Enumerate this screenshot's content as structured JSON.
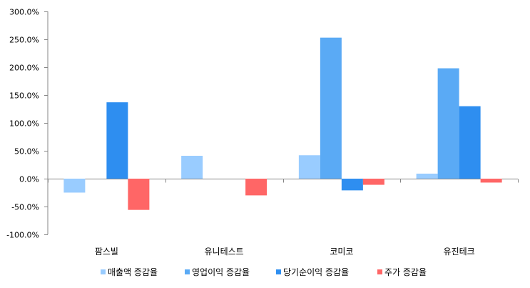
{
  "chart_data": {
    "type": "bar",
    "categories": [
      "팜스빌",
      "유니테스트",
      "코미코",
      "유진테크"
    ],
    "series": [
      {
        "name": "매출액 증감율",
        "color": "#99CCFF",
        "values": [
          -25,
          41,
          42,
          9
        ]
      },
      {
        "name": "영업이익 증감율",
        "color": "#5AAAF5",
        "values": [
          0,
          0,
          253,
          198
        ]
      },
      {
        "name": "당기순이익 증감율",
        "color": "#2E8EF0",
        "values": [
          137,
          0,
          -21,
          130
        ]
      },
      {
        "name": "주가 증감율",
        "color": "#FF6666",
        "values": [
          -56,
          -30,
          -11,
          -7
        ]
      }
    ],
    "y_ticks": [
      "300.0%",
      "250.0%",
      "200.0%",
      "150.0%",
      "100.0%",
      "50.0%",
      "0.0%",
      "-50.0%",
      "-100.0%"
    ],
    "ylim": [
      -100,
      300
    ],
    "ytick_step": 50,
    "grid": false,
    "legend_position": "bottom",
    "title": "",
    "xlabel": "",
    "ylabel": ""
  }
}
